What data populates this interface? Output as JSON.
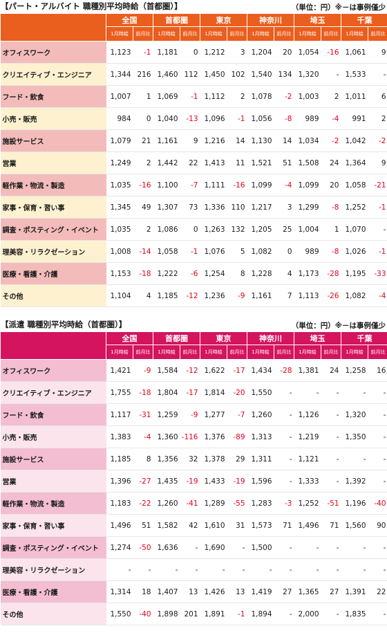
{
  "sub_headers": [
    "1月時給",
    "前月比"
  ],
  "regions": [
    "全国",
    "首都圏",
    "東京",
    "神奈川",
    "埼玉",
    "千葉"
  ],
  "part": {
    "title": "【パート・アルバイト 職種別平均時給（首都圏）】",
    "unit_note": "（単位：円）※－は事例僅少",
    "rows": [
      {
        "label": "オフィスワーク",
        "cells": [
          "1,123",
          "-1",
          "1,181",
          "0",
          "1,212",
          "3",
          "1,204",
          "20",
          "1,054",
          "-16",
          "1,061",
          "9"
        ]
      },
      {
        "label": "クリエイティブ・エンジニア",
        "cells": [
          "1,344",
          "216",
          "1,460",
          "112",
          "1,450",
          "102",
          "1,540",
          "134",
          "1,320",
          "-",
          "1,533",
          "-"
        ]
      },
      {
        "label": "フード・飲食",
        "cells": [
          "1,007",
          "1",
          "1,069",
          "-1",
          "1,112",
          "2",
          "1,078",
          "-2",
          "1,003",
          "2",
          "1,011",
          "6"
        ]
      },
      {
        "label": "小売・販売",
        "cells": [
          "984",
          "0",
          "1,040",
          "-13",
          "1,096",
          "-1",
          "1,056",
          "-8",
          "989",
          "-4",
          "991",
          "2"
        ]
      },
      {
        "label": "施設サービス",
        "cells": [
          "1,079",
          "21",
          "1,161",
          "9",
          "1,216",
          "14",
          "1,130",
          "14",
          "1,034",
          "-2",
          "1,042",
          "-2"
        ]
      },
      {
        "label": "営業",
        "cells": [
          "1,249",
          "2",
          "1,442",
          "22",
          "1,413",
          "11",
          "1,521",
          "51",
          "1,508",
          "24",
          "1,364",
          "9"
        ]
      },
      {
        "label": "軽作業・物流・製造",
        "cells": [
          "1,035",
          "-16",
          "1,100",
          "-7",
          "1,111",
          "-16",
          "1,099",
          "-4",
          "1,099",
          "20",
          "1,058",
          "-21"
        ]
      },
      {
        "label": "家事・保育・習い事",
        "cells": [
          "1,345",
          "49",
          "1,307",
          "73",
          "1,336",
          "110",
          "1,217",
          "3",
          "1,299",
          "-8",
          "1,252",
          "-1"
        ]
      },
      {
        "label": "調査・ポスティング・イベント",
        "cells": [
          "1,035",
          "2",
          "1,086",
          "0",
          "1,263",
          "132",
          "1,205",
          "25",
          "1,004",
          "1",
          "1,070",
          "-"
        ]
      },
      {
        "label": "理美容・リラクゼーション",
        "cells": [
          "1,008",
          "-14",
          "1,058",
          "-1",
          "1,076",
          "5",
          "1,082",
          "0",
          "989",
          "-8",
          "1,026",
          "-1"
        ]
      },
      {
        "label": "医療・看護・介護",
        "cells": [
          "1,153",
          "-18",
          "1,222",
          "-6",
          "1,254",
          "8",
          "1,228",
          "4",
          "1,173",
          "-28",
          "1,195",
          "-33"
        ]
      },
      {
        "label": "その他",
        "cells": [
          "1,104",
          "4",
          "1,185",
          "-12",
          "1,236",
          "-9",
          "1,161",
          "7",
          "1,113",
          "-26",
          "1,082",
          "-4"
        ]
      }
    ]
  },
  "haken": {
    "title": "【派遣 職種別平均時給（首都圏）】",
    "unit_note": "（単位：円）※－は事例僅少",
    "rows": [
      {
        "label": "オフィスワーク",
        "cells": [
          "1,421",
          "-9",
          "1,584",
          "-12",
          "1,622",
          "-17",
          "1,434",
          "-28",
          "1,381",
          "24",
          "1,258",
          "16"
        ]
      },
      {
        "label": "クリエイティブ・エンジニア",
        "cells": [
          "1,755",
          "-18",
          "1,804",
          "-17",
          "1,814",
          "-20",
          "1,550",
          "-",
          "-",
          "-",
          "-",
          "-"
        ]
      },
      {
        "label": "フード・飲食",
        "cells": [
          "1,117",
          "-31",
          "1,259",
          "-9",
          "1,277",
          "-7",
          "1,260",
          "-",
          "1,126",
          "-",
          "1,320",
          "-"
        ]
      },
      {
        "label": "小売・販売",
        "cells": [
          "1,383",
          "-4",
          "1,360",
          "-116",
          "1,376",
          "-89",
          "1,313",
          "-",
          "1,219",
          "-",
          "1,350",
          "-"
        ]
      },
      {
        "label": "施設サービス",
        "cells": [
          "1,185",
          "8",
          "1,356",
          "32",
          "1,378",
          "29",
          "1,311",
          "-",
          "1,121",
          "-",
          "-",
          "-"
        ]
      },
      {
        "label": "営業",
        "cells": [
          "1,396",
          "-27",
          "1,435",
          "-19",
          "1,433",
          "-19",
          "1,596",
          "-",
          "1,333",
          "-",
          "1,392",
          "-"
        ]
      },
      {
        "label": "軽作業・物流・製造",
        "cells": [
          "1,183",
          "-22",
          "1,260",
          "-41",
          "1,289",
          "-55",
          "1,283",
          "-3",
          "1,252",
          "-51",
          "1,196",
          "-40"
        ]
      },
      {
        "label": "家事・保育・習い事",
        "cells": [
          "1,496",
          "51",
          "1,582",
          "42",
          "1,610",
          "31",
          "1,573",
          "71",
          "1,496",
          "71",
          "1,560",
          "90"
        ]
      },
      {
        "label": "調査・ポスティング・イベント",
        "cells": [
          "1,274",
          "-50",
          "1,636",
          "-",
          "1,690",
          "-",
          "1,500",
          "-",
          "-",
          "-",
          "-",
          "-"
        ]
      },
      {
        "label": "理美容・リラクゼーション",
        "cells": [
          "-",
          "-",
          "-",
          "-",
          "-",
          "-",
          "-",
          "-",
          "-",
          "-",
          "-",
          "-"
        ]
      },
      {
        "label": "医療・看護・介護",
        "cells": [
          "1,314",
          "18",
          "1,407",
          "13",
          "1,426",
          "13",
          "1,419",
          "27",
          "1,365",
          "27",
          "1,391",
          "22"
        ]
      },
      {
        "label": "その他",
        "cells": [
          "1,550",
          "-40",
          "1,898",
          "201",
          "1,891",
          "-1",
          "1,894",
          "-",
          "2,000",
          "-",
          "1,835",
          "-"
        ]
      }
    ]
  }
}
